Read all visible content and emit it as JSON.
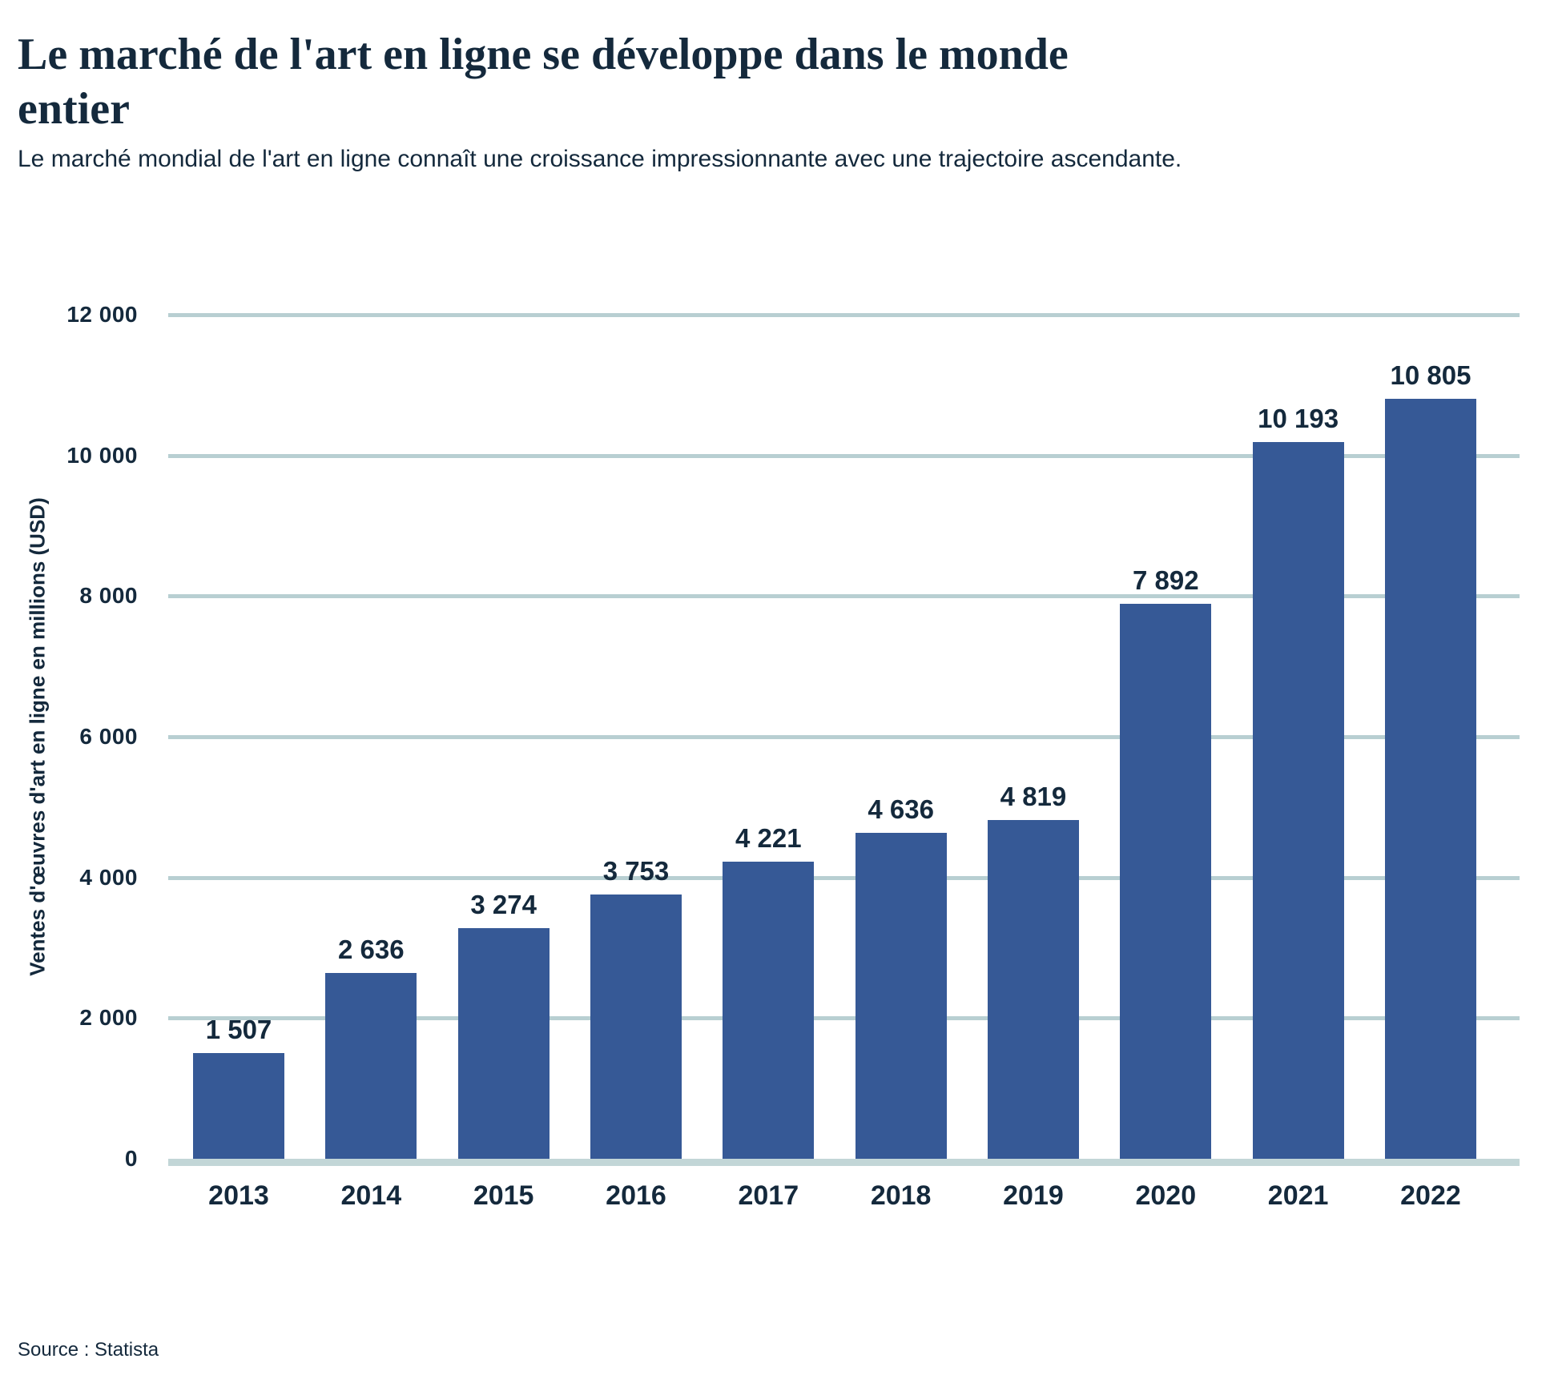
{
  "header": {
    "title_line1": "Le marché de l'art en ligne se développe dans le monde",
    "title_line2": "entier",
    "subtitle": "Le marché mondial de l'art en ligne connaît une croissance impressionnante avec une trajectoire ascendante."
  },
  "chart_data": {
    "type": "bar",
    "title": "Le marché de l'art en ligne se développe dans le monde entier",
    "subtitle": "Le marché mondial de l'art en ligne connaît une croissance impressionnante avec une trajectoire ascendante.",
    "categories": [
      "2013",
      "2014",
      "2015",
      "2016",
      "2017",
      "2018",
      "2019",
      "2020",
      "2021",
      "2022"
    ],
    "values": [
      1507,
      2636,
      3274,
      3753,
      4221,
      4636,
      4819,
      7892,
      10193,
      10805
    ],
    "value_labels": [
      "1 507",
      "2 636",
      "3 274",
      "3 753",
      "4 221",
      "4 636",
      "4 819",
      "7 892",
      "10 193",
      "10 805"
    ],
    "xlabel": "",
    "ylabel": "Ventes d'œuvres d'art en ligne en millions (USD)",
    "ylim": [
      0,
      12000
    ],
    "yticks": [
      {
        "value": 0,
        "label": "0"
      },
      {
        "value": 2000,
        "label": "2 000"
      },
      {
        "value": 4000,
        "label": "4 000"
      },
      {
        "value": 6000,
        "label": "6 000"
      },
      {
        "value": 8000,
        "label": "8 000"
      },
      {
        "value": 10000,
        "label": "10 000"
      },
      {
        "value": 12000,
        "label": "12 000"
      }
    ],
    "grid": "horizontal",
    "legend": "none"
  },
  "colors": {
    "bar": "#365996",
    "text_navy": "#14293C",
    "gridline": "#B8CFD2",
    "baseline": "#C2D6D7"
  },
  "source": {
    "label": "Source : Statista"
  }
}
